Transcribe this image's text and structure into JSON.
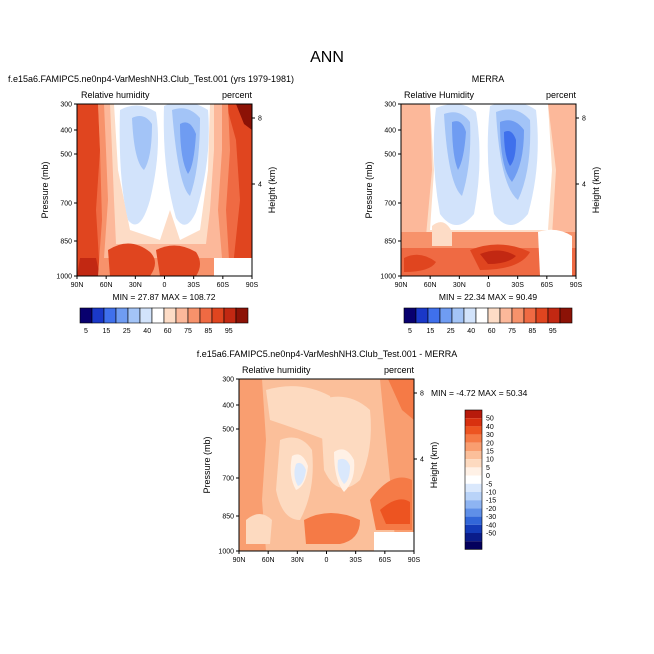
{
  "figure_title": "ANN",
  "chart_data": [
    {
      "type": "heatmap",
      "title": "f.e15a6.FAMIPC5.ne0np4-VarMeshNH3.Club_Test.001 (yrs 1979-1981)",
      "left_label": "Relative humidity",
      "right_label": "percent",
      "xlabel": "",
      "ylabel": "Pressure (mb)",
      "y2label": "Height (km)",
      "x_ticks": [
        "90N",
        "60N",
        "30N",
        "0",
        "30S",
        "60S",
        "90S"
      ],
      "y_ticks": [
        "300",
        "400",
        "500",
        "700",
        "850",
        "1000"
      ],
      "y2_ticks": [
        "8",
        "4"
      ],
      "stats": "MIN = 27.87  MAX = 108.72",
      "min": 27.87,
      "max": 108.72,
      "colorbar_ticks": [
        "5",
        "15",
        "25",
        "40",
        "60",
        "75",
        "85",
        "95"
      ]
    },
    {
      "type": "heatmap",
      "title": "MERRA",
      "left_label": "Relative Humidity",
      "right_label": "percent",
      "xlabel": "",
      "ylabel": "Pressure (mb)",
      "y2label": "Height (km)",
      "x_ticks": [
        "90N",
        "60N",
        "30N",
        "0",
        "30S",
        "60S",
        "90S"
      ],
      "y_ticks": [
        "300",
        "400",
        "500",
        "700",
        "850",
        "1000"
      ],
      "y2_ticks": [
        "8",
        "4"
      ],
      "stats": "MIN = 22.34  MAX = 90.49",
      "min": 22.34,
      "max": 90.49,
      "colorbar_ticks": [
        "5",
        "15",
        "25",
        "40",
        "60",
        "75",
        "85",
        "95"
      ]
    },
    {
      "type": "heatmap",
      "title": "f.e15a6.FAMIPC5.ne0np4-VarMeshNH3.Club_Test.001 - MERRA",
      "left_label": "Relative humidity",
      "right_label": "percent",
      "xlabel": "",
      "ylabel": "Pressure (mb)",
      "y2label": "Height (km)",
      "x_ticks": [
        "90N",
        "60N",
        "30N",
        "0",
        "30S",
        "60S",
        "90S"
      ],
      "y_ticks": [
        "300",
        "400",
        "500",
        "700",
        "850",
        "1000"
      ],
      "y2_ticks": [
        "8",
        "4"
      ],
      "stats": "MIN = -4.72  MAX = 50.34",
      "min": -4.72,
      "max": 50.34,
      "colorbar_ticks": [
        "50",
        "40",
        "30",
        "20",
        "15",
        "10",
        "5",
        "0",
        "-5",
        "-10",
        "-15",
        "-20",
        "-30",
        "-40",
        "-50"
      ]
    }
  ],
  "colors": {
    "rh_scale": [
      "#08006e",
      "#1a38c8",
      "#3f70ec",
      "#6f9cf2",
      "#a3c4f7",
      "#d2e3fb",
      "#ffffff",
      "#fddcc6",
      "#fcb89a",
      "#f7926b",
      "#ef6a43",
      "#e0451f",
      "#c22812",
      "#8c1206"
    ],
    "diff_scale": [
      "#b71a0b",
      "#d8300f",
      "#ed5421",
      "#f57a46",
      "#f99e70",
      "#fbbf9a",
      "#fddac0",
      "#fff1e6",
      "#ffffff",
      "#dae8fc",
      "#b9d3f8",
      "#8eb4f2",
      "#5f8fe8",
      "#3266d8",
      "#143bb8",
      "#0a1c8a",
      "#04005c"
    ]
  }
}
